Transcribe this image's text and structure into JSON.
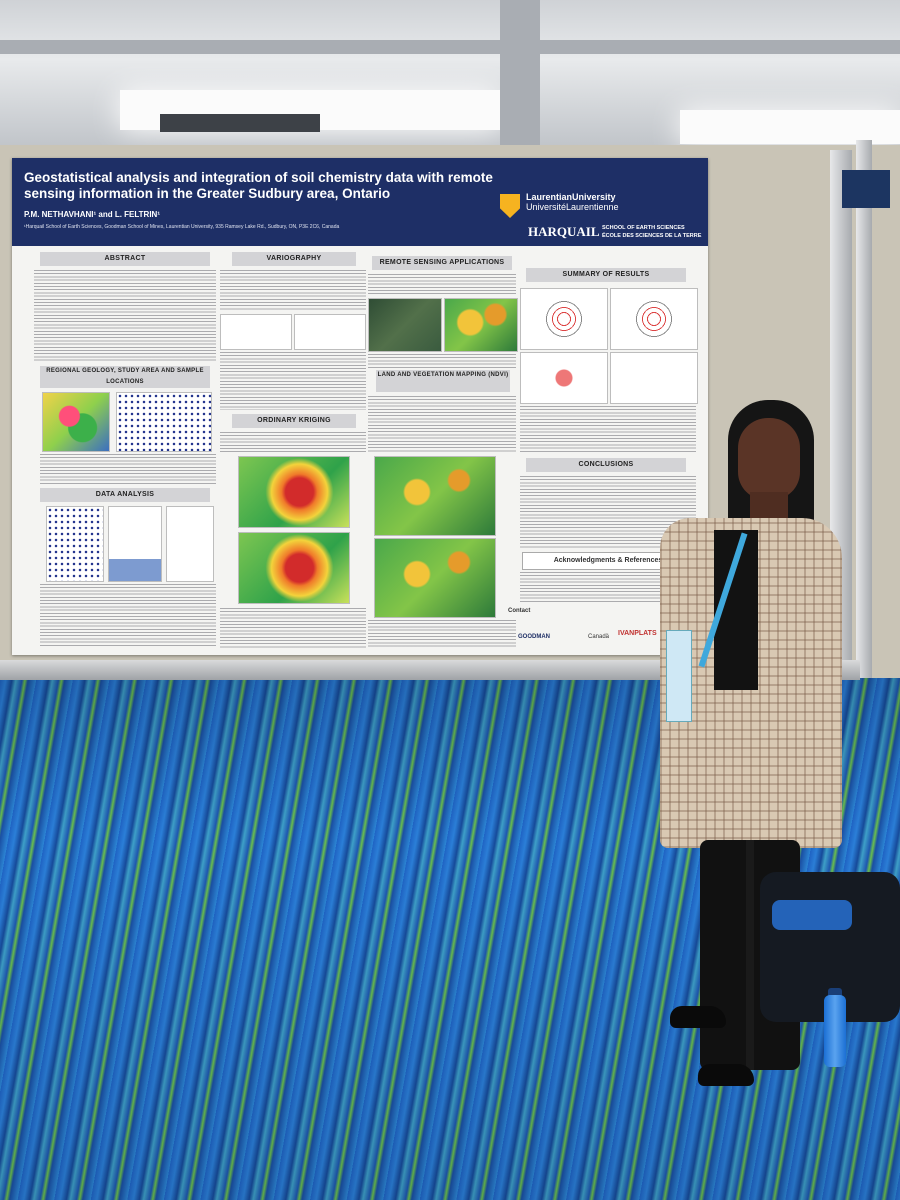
{
  "poster": {
    "title": "Geostatistical analysis and integration of soil chemistry data with remote sensing information in the Greater Sudbury area, Ontario",
    "authors": "P.M. NETHAVHANI¹ and L. FELTRIN¹",
    "affiliation": "¹Harquail School of Earth Sciences, Goodman School of Mines, Laurentian University, 935 Ramsey Lake Rd., Sudbury, ON, P3E 2C6, Canada",
    "university_en": "LaurentianUniversity",
    "university_fr": "UniversitéLaurentienne",
    "school_name": "HARQUAIL",
    "school_en": "SCHOOL OF EARTH SCIENCES",
    "school_fr": "ÉCOLE DES SCIENCES DE LA TERRE",
    "sections": {
      "abstract": "ABSTRACT",
      "regional_geology": "REGIONAL GEOLOGY, STUDY AREA AND SAMPLE LOCATIONS",
      "data_analysis": "DATA ANALYSIS",
      "variography": "VARIOGRAPHY",
      "ordinary_kriging": "ORDINARY KRIGING",
      "remote_sensing": "REMOTE SENSING APPLICATIONS",
      "land_vegetation": "LAND AND VEGETATION MAPPING (NDVI)",
      "summary": "SUMMARY OF RESULTS",
      "conclusions": "CONCLUSIONS",
      "acknowledgments": "Acknowledgments & References",
      "contact": "Contact"
    },
    "sponsors": [
      "GOODMAN",
      "IVANPLATS",
      "Canadä"
    ]
  }
}
